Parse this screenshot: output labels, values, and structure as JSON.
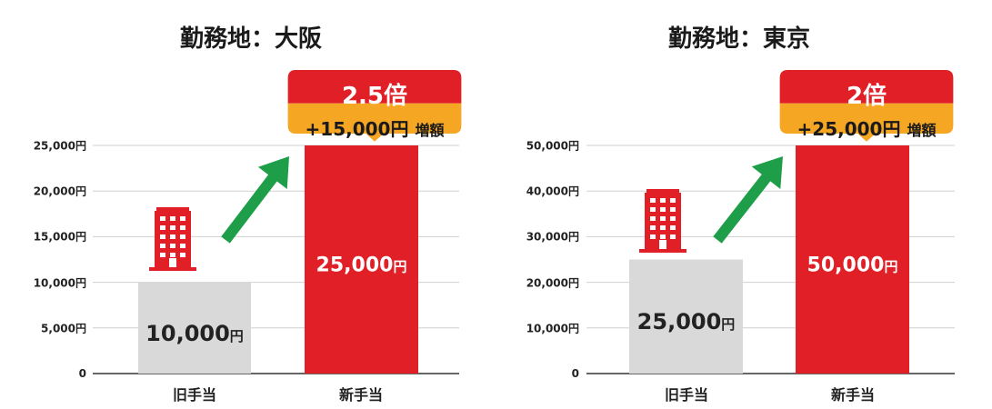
{
  "chart_data": [
    {
      "type": "bar",
      "title": "勤務地：大阪",
      "categories": [
        "旧手当",
        "新手当"
      ],
      "values": [
        10000,
        25000
      ],
      "value_labels": [
        "10,000",
        "25,000"
      ],
      "value_unit": "円",
      "ylim": [
        0,
        25000
      ],
      "yticks": [
        "0",
        "5,000円",
        "10,000円",
        "15,000円",
        "20,000円",
        "25,000円"
      ],
      "ytick_values": [
        0,
        5000,
        10000,
        15000,
        20000,
        25000
      ],
      "grid": true,
      "callout": {
        "multiplier": "2.5倍",
        "difference": "+15,000円",
        "difference_suffix": "増額"
      }
    },
    {
      "type": "bar",
      "title": "勤務地：東京",
      "categories": [
        "旧手当",
        "新手当"
      ],
      "values": [
        25000,
        50000
      ],
      "value_labels": [
        "25,000",
        "50,000"
      ],
      "value_unit": "円",
      "ylim": [
        0,
        50000
      ],
      "yticks": [
        "0",
        "10,000円",
        "20,000円",
        "30,000円",
        "40,000円",
        "50,000円"
      ],
      "ytick_values": [
        0,
        10000,
        20000,
        30000,
        40000,
        50000
      ],
      "grid": true,
      "callout": {
        "multiplier": "2倍",
        "difference": "+25,000円",
        "difference_suffix": "増額"
      }
    }
  ],
  "colors": {
    "new_bar": "#e01f26",
    "old_bar": "#d9d9d9",
    "callout_top": "#e01f26",
    "callout_bottom": "#f5a623",
    "arrow": "#1f9e4a",
    "gridline": "#d0d0d0",
    "axis": "#333333"
  },
  "icons": [
    "office-buildings-icon",
    "office-building-icon",
    "growth-arrow-icon"
  ]
}
